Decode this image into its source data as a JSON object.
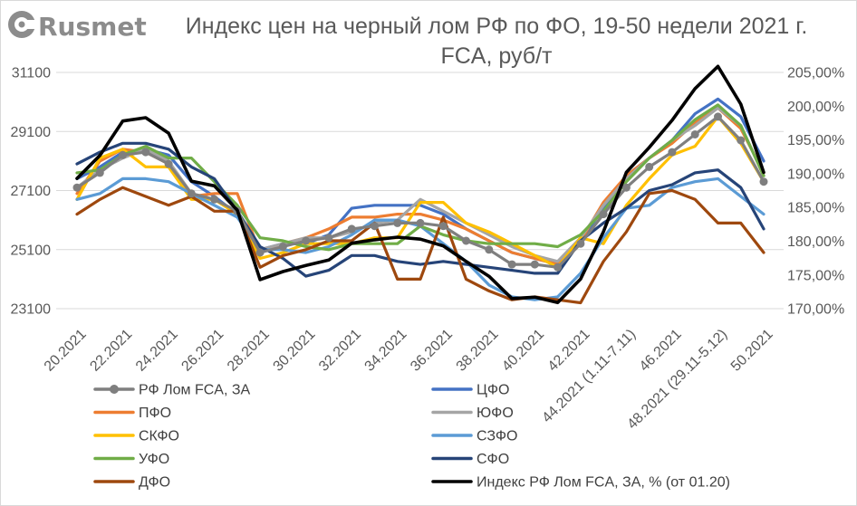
{
  "logo": {
    "text": "Rusmet",
    "icon": "rusmet-logo-icon",
    "color": "#8c8c8c"
  },
  "chart_data": {
    "type": "line",
    "title": [
      "Индекс цен на черный лом РФ по ФО, 19-50 недели 2021 г.",
      "FCA, руб/т"
    ],
    "x": [
      20,
      21,
      22,
      23,
      24,
      25,
      26,
      27,
      28,
      29,
      30,
      31,
      32,
      33,
      34,
      35,
      36,
      37,
      38,
      39,
      40,
      41,
      42,
      43,
      44,
      45,
      46,
      47,
      48,
      49,
      50
    ],
    "x_ticks": [
      {
        "x": 20,
        "label": "20.2021"
      },
      {
        "x": 22,
        "label": "22.2021"
      },
      {
        "x": 24,
        "label": "24.2021"
      },
      {
        "x": 26,
        "label": "26.2021"
      },
      {
        "x": 28,
        "label": "28.2021"
      },
      {
        "x": 30,
        "label": "30.2021"
      },
      {
        "x": 32,
        "label": "32.2021"
      },
      {
        "x": 34,
        "label": "34.2021"
      },
      {
        "x": 36,
        "label": "36.2021"
      },
      {
        "x": 38,
        "label": "38.2021"
      },
      {
        "x": 40,
        "label": "40.2021"
      },
      {
        "x": 42,
        "label": "42.2021"
      },
      {
        "x": 44,
        "label": "44.2021 (1.11-7.11)"
      },
      {
        "x": 46,
        "label": "46.2021"
      },
      {
        "x": 48,
        "label": "48.2021 (29.11-5.12)"
      },
      {
        "x": 50,
        "label": "50.2021"
      }
    ],
    "y_left": {
      "lim": [
        23100,
        31100
      ],
      "ticks": [
        31100,
        29100,
        27100,
        25100,
        23100
      ]
    },
    "y_right": {
      "lim": [
        170,
        205
      ],
      "ticks": [
        {
          "value": 205,
          "label": "205,00%"
        },
        {
          "value": 200,
          "label": "200,00%"
        },
        {
          "value": 195,
          "label": "195,00%"
        },
        {
          "value": 190,
          "label": "190,00%"
        },
        {
          "value": 185,
          "label": "185,00%"
        },
        {
          "value": 180,
          "label": "180,00%"
        },
        {
          "value": 175,
          "label": "175,00%"
        },
        {
          "value": 170,
          "label": "170,00%"
        }
      ]
    },
    "grid": true,
    "legend_position": "bottom",
    "series": [
      {
        "name": "РФ Лом FCA, ЗА",
        "color": "#7f7f7f",
        "axis": "left",
        "marker": "circle",
        "values": [
          27200,
          27700,
          28300,
          28400,
          28000,
          27000,
          26800,
          26400,
          25000,
          25200,
          25400,
          25500,
          25800,
          25900,
          26000,
          26000,
          25900,
          25400,
          25100,
          24600,
          24600,
          24500,
          25300,
          26300,
          27200,
          27900,
          28400,
          29000,
          29600,
          28800,
          27400
        ]
      },
      {
        "name": "ЦФО",
        "color": "#4472c4",
        "axis": "left",
        "values": [
          27500,
          27900,
          28400,
          28500,
          28300,
          27400,
          26900,
          26300,
          25100,
          25300,
          25300,
          25600,
          26500,
          26600,
          26600,
          26600,
          26300,
          25800,
          25400,
          25000,
          24800,
          24600,
          25400,
          26500,
          27600,
          28200,
          28800,
          29700,
          30200,
          29600,
          28100
        ]
      },
      {
        "name": "ПФО",
        "color": "#ed7d31",
        "axis": "left",
        "values": [
          27000,
          28100,
          28500,
          28400,
          28000,
          26900,
          27000,
          27000,
          25000,
          25300,
          25500,
          25800,
          26200,
          26200,
          26300,
          26300,
          26100,
          25800,
          25400,
          25000,
          24800,
          24600,
          25400,
          26700,
          27600,
          28200,
          28700,
          29400,
          29900,
          29200,
          27700
        ]
      },
      {
        "name": "ЮФО",
        "color": "#a5a5a5",
        "axis": "left",
        "values": [
          27200,
          27800,
          28200,
          28500,
          28100,
          27000,
          26800,
          26300,
          25100,
          25300,
          25500,
          25500,
          25700,
          26000,
          26100,
          26800,
          26400,
          26000,
          25600,
          25200,
          24900,
          24700,
          25500,
          26600,
          27500,
          28200,
          28800,
          29300,
          29900,
          29300,
          27600
        ]
      },
      {
        "name": "СКФО",
        "color": "#ffc000",
        "axis": "left",
        "values": [
          26800,
          28200,
          28500,
          27900,
          27900,
          26800,
          26800,
          26300,
          24800,
          25000,
          25300,
          25300,
          25300,
          25500,
          25500,
          26700,
          26700,
          26000,
          25700,
          25300,
          24900,
          24500,
          25500,
          25300,
          26600,
          27500,
          28300,
          28600,
          29600,
          28700,
          27400
        ]
      },
      {
        "name": "СЗФО",
        "color": "#5b9bd5",
        "axis": "left",
        "values": [
          26800,
          27000,
          27500,
          27500,
          27400,
          27000,
          26600,
          26200,
          25100,
          25100,
          25000,
          25200,
          25600,
          26100,
          26100,
          25900,
          25300,
          24700,
          23900,
          23500,
          23400,
          23500,
          24300,
          25500,
          26500,
          26600,
          27200,
          27400,
          27500,
          26900,
          26300
        ]
      },
      {
        "name": "УФО",
        "color": "#70ad47",
        "axis": "left",
        "values": [
          27700,
          27800,
          28300,
          28600,
          28200,
          28200,
          27400,
          26600,
          25500,
          25400,
          25200,
          25100,
          25300,
          25300,
          25300,
          25900,
          25600,
          25400,
          25300,
          25300,
          25300,
          25200,
          25600,
          26400,
          27400,
          28200,
          28800,
          29500,
          30000,
          29300,
          27600
        ]
      },
      {
        "name": "СФО",
        "color": "#264478",
        "axis": "left",
        "values": [
          28000,
          28400,
          28700,
          28700,
          28500,
          27900,
          27500,
          26400,
          25200,
          24800,
          24200,
          24400,
          24900,
          24900,
          24700,
          24600,
          24700,
          24600,
          24500,
          24400,
          24300,
          24300,
          25400,
          26000,
          26500,
          27100,
          27300,
          27700,
          27800,
          27200,
          25800
        ]
      },
      {
        "name": "ДФО",
        "color": "#9e480e",
        "axis": "left",
        "values": [
          26300,
          26800,
          27200,
          26900,
          26600,
          26900,
          26400,
          26400,
          24500,
          24900,
          25100,
          25400,
          25400,
          26000,
          24100,
          24100,
          26200,
          24100,
          23700,
          23400,
          23500,
          23400,
          23300,
          24700,
          25700,
          27000,
          27100,
          26800,
          26000,
          26000,
          25000
        ]
      },
      {
        "name": "Индекс РФ Лом FCA, ЗА, % (от 01.20)",
        "color": "#000000",
        "axis": "right",
        "values": [
          189.3,
          192.7,
          197.8,
          198.3,
          196.0,
          188.9,
          188.2,
          184.6,
          174.3,
          175.5,
          176.4,
          177.2,
          179.7,
          180.2,
          180.6,
          180.3,
          179.3,
          177.0,
          174.8,
          171.5,
          171.7,
          170.9,
          174.4,
          181.4,
          190.2,
          193.9,
          197.9,
          202.6,
          205.9,
          200.3,
          190.2
        ]
      }
    ]
  }
}
